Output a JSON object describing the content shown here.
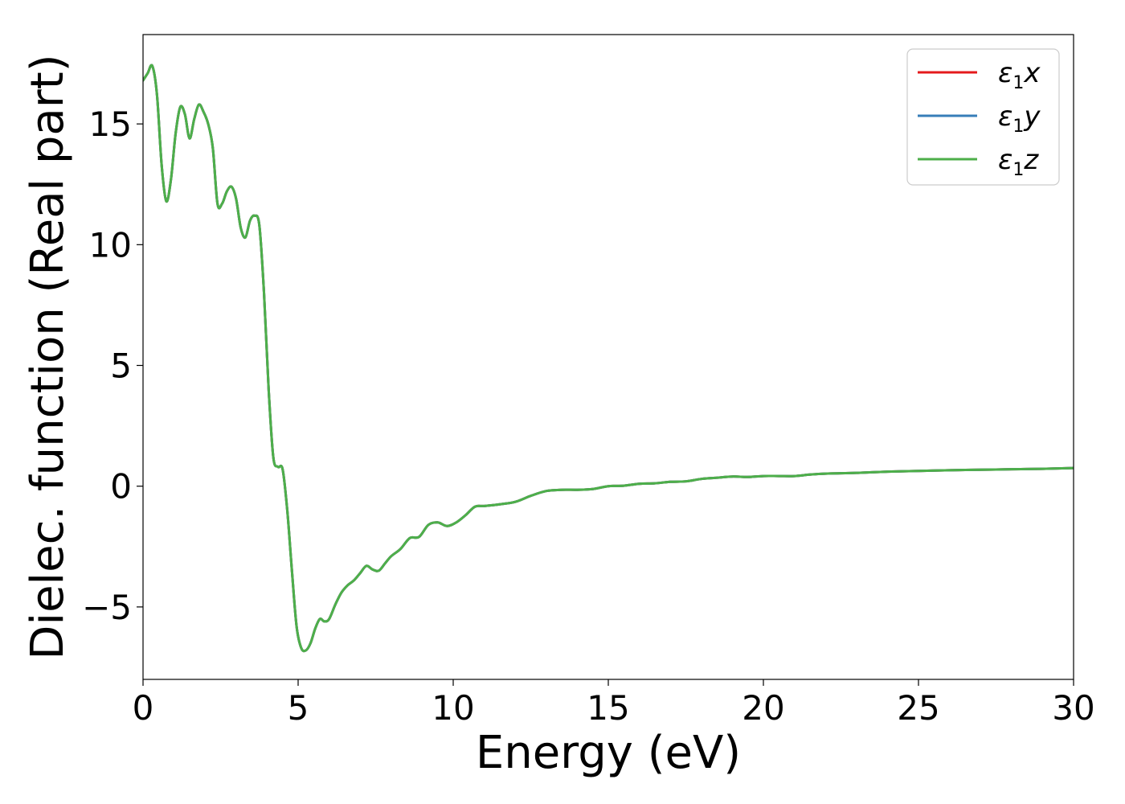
{
  "chart_data": {
    "type": "line",
    "xlabel": "Energy (eV)",
    "ylabel": "Dielec. function (Real part)",
    "xlim": [
      0,
      30
    ],
    "ylim": [
      -8,
      18.7
    ],
    "x_ticks": [
      0,
      5,
      10,
      15,
      20,
      25,
      30
    ],
    "y_ticks": [
      -5,
      0,
      5,
      10,
      15
    ],
    "x_tick_labels": [
      "0",
      "5",
      "10",
      "15",
      "20",
      "25",
      "30"
    ],
    "y_tick_labels": [
      "−5",
      "0",
      "5",
      "10",
      "15"
    ],
    "grid": false,
    "legend_position": "top-right",
    "legend": [
      {
        "base": "ε",
        "sub": "1",
        "tail": "x",
        "color": "#e41a1c"
      },
      {
        "base": "ε",
        "sub": "1",
        "tail": "y",
        "color": "#377eb8"
      },
      {
        "base": "ε",
        "sub": "1",
        "tail": "z",
        "color": "#4daf4a"
      }
    ],
    "x": [
      0,
      0.15,
      0.3,
      0.45,
      0.6,
      0.75,
      0.9,
      1.05,
      1.2,
      1.35,
      1.5,
      1.65,
      1.8,
      1.95,
      2.1,
      2.25,
      2.4,
      2.55,
      2.7,
      2.85,
      3.0,
      3.15,
      3.3,
      3.45,
      3.6,
      3.75,
      3.9,
      4.05,
      4.2,
      4.35,
      4.5,
      4.65,
      4.8,
      4.95,
      5.1,
      5.25,
      5.4,
      5.55,
      5.7,
      5.85,
      6.0,
      6.2,
      6.4,
      6.6,
      6.8,
      7.0,
      7.2,
      7.4,
      7.6,
      7.8,
      8.0,
      8.3,
      8.6,
      8.9,
      9.2,
      9.5,
      9.8,
      10.1,
      10.4,
      10.7,
      11.0,
      11.5,
      12.0,
      12.5,
      13.0,
      13.5,
      14.0,
      14.5,
      15.0,
      15.5,
      16.0,
      16.5,
      17.0,
      17.5,
      18.0,
      18.5,
      19.0,
      19.5,
      20.0,
      20.5,
      21.0,
      21.5,
      22.0,
      23.0,
      24.0,
      25.0,
      26.0,
      27.0,
      28.0,
      29.0,
      30.0
    ],
    "series": [
      {
        "name": "ε1x",
        "color": "#e41a1c",
        "values": [
          16.8,
          17.1,
          17.4,
          16.2,
          13.3,
          11.8,
          12.7,
          14.6,
          15.7,
          15.4,
          14.4,
          15.2,
          15.8,
          15.5,
          15.0,
          14.0,
          11.7,
          11.7,
          12.2,
          12.4,
          11.9,
          10.7,
          10.3,
          11.0,
          11.2,
          10.8,
          8.0,
          4.0,
          1.2,
          0.8,
          0.7,
          -1.0,
          -3.5,
          -5.8,
          -6.7,
          -6.8,
          -6.5,
          -5.9,
          -5.5,
          -5.6,
          -5.5,
          -4.9,
          -4.4,
          -4.1,
          -3.9,
          -3.6,
          -3.3,
          -3.45,
          -3.5,
          -3.2,
          -2.9,
          -2.6,
          -2.15,
          -2.1,
          -1.6,
          -1.5,
          -1.65,
          -1.5,
          -1.2,
          -0.85,
          -0.82,
          -0.75,
          -0.65,
          -0.4,
          -0.2,
          -0.15,
          -0.15,
          -0.12,
          0.0,
          0.02,
          0.1,
          0.12,
          0.18,
          0.2,
          0.3,
          0.35,
          0.4,
          0.38,
          0.42,
          0.42,
          0.42,
          0.48,
          0.52,
          0.55,
          0.6,
          0.63,
          0.66,
          0.68,
          0.7,
          0.72,
          0.75
        ]
      },
      {
        "name": "ε1y",
        "color": "#377eb8",
        "values": [
          16.8,
          17.1,
          17.4,
          16.2,
          13.3,
          11.8,
          12.7,
          14.6,
          15.7,
          15.4,
          14.4,
          15.2,
          15.8,
          15.5,
          15.0,
          14.0,
          11.7,
          11.7,
          12.2,
          12.4,
          11.9,
          10.7,
          10.3,
          11.0,
          11.2,
          10.8,
          8.0,
          4.0,
          1.2,
          0.8,
          0.7,
          -1.0,
          -3.5,
          -5.8,
          -6.7,
          -6.8,
          -6.5,
          -5.9,
          -5.5,
          -5.6,
          -5.5,
          -4.9,
          -4.4,
          -4.1,
          -3.9,
          -3.6,
          -3.3,
          -3.45,
          -3.5,
          -3.2,
          -2.9,
          -2.6,
          -2.15,
          -2.1,
          -1.6,
          -1.5,
          -1.65,
          -1.5,
          -1.2,
          -0.85,
          -0.82,
          -0.75,
          -0.65,
          -0.4,
          -0.2,
          -0.15,
          -0.15,
          -0.12,
          0.0,
          0.02,
          0.1,
          0.12,
          0.18,
          0.2,
          0.3,
          0.35,
          0.4,
          0.38,
          0.42,
          0.42,
          0.42,
          0.48,
          0.52,
          0.55,
          0.6,
          0.63,
          0.66,
          0.68,
          0.7,
          0.72,
          0.75
        ]
      },
      {
        "name": "ε1z",
        "color": "#4daf4a",
        "values": [
          16.8,
          17.1,
          17.4,
          16.2,
          13.3,
          11.8,
          12.7,
          14.6,
          15.7,
          15.4,
          14.4,
          15.2,
          15.8,
          15.5,
          15.0,
          14.0,
          11.7,
          11.7,
          12.2,
          12.4,
          11.9,
          10.7,
          10.3,
          11.0,
          11.2,
          10.8,
          8.0,
          4.0,
          1.2,
          0.8,
          0.7,
          -1.0,
          -3.5,
          -5.8,
          -6.7,
          -6.8,
          -6.5,
          -5.9,
          -5.5,
          -5.6,
          -5.5,
          -4.9,
          -4.4,
          -4.1,
          -3.9,
          -3.6,
          -3.3,
          -3.45,
          -3.5,
          -3.2,
          -2.9,
          -2.6,
          -2.15,
          -2.1,
          -1.6,
          -1.5,
          -1.65,
          -1.5,
          -1.2,
          -0.85,
          -0.82,
          -0.75,
          -0.65,
          -0.4,
          -0.2,
          -0.15,
          -0.15,
          -0.12,
          0.0,
          0.02,
          0.1,
          0.12,
          0.18,
          0.2,
          0.3,
          0.35,
          0.4,
          0.38,
          0.42,
          0.42,
          0.42,
          0.48,
          0.52,
          0.55,
          0.6,
          0.63,
          0.66,
          0.68,
          0.7,
          0.72,
          0.75
        ]
      }
    ]
  }
}
